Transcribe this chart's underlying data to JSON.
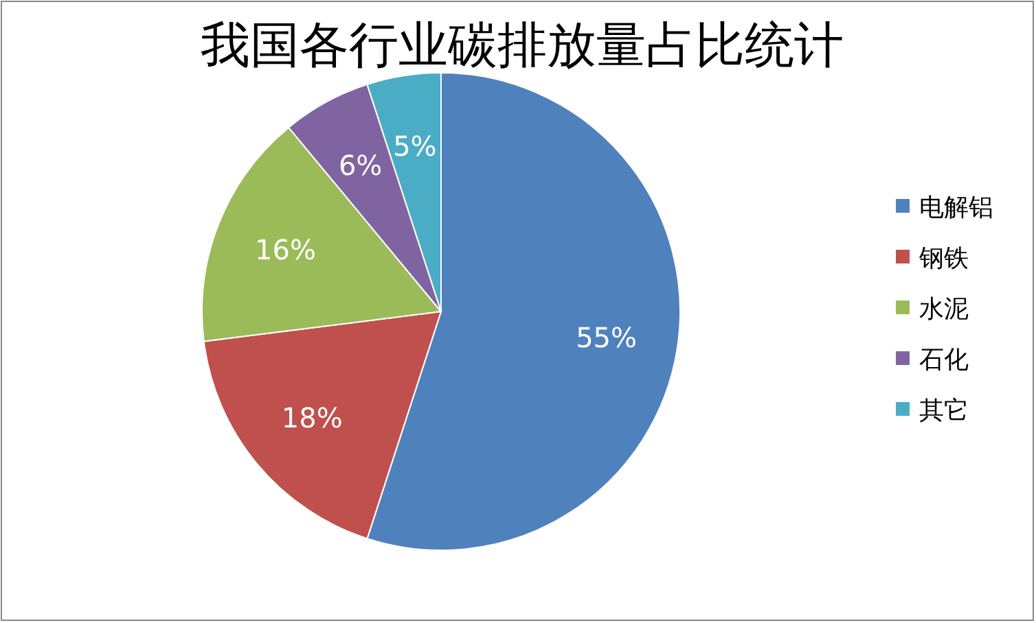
{
  "chart_data": {
    "type": "pie",
    "title": "我国各行业碳排放量占比统计",
    "categories": [
      "电解铝",
      "钢铁",
      "水泥",
      "石化",
      "其它"
    ],
    "values": [
      55,
      18,
      16,
      6,
      5
    ],
    "colors": [
      "#4f81bd",
      "#c0504d",
      "#9bbb59",
      "#8064a2",
      "#4bacc6"
    ],
    "value_labels": [
      "55%",
      "18%",
      "16%",
      "6%",
      "5%"
    ],
    "legend": "right"
  }
}
